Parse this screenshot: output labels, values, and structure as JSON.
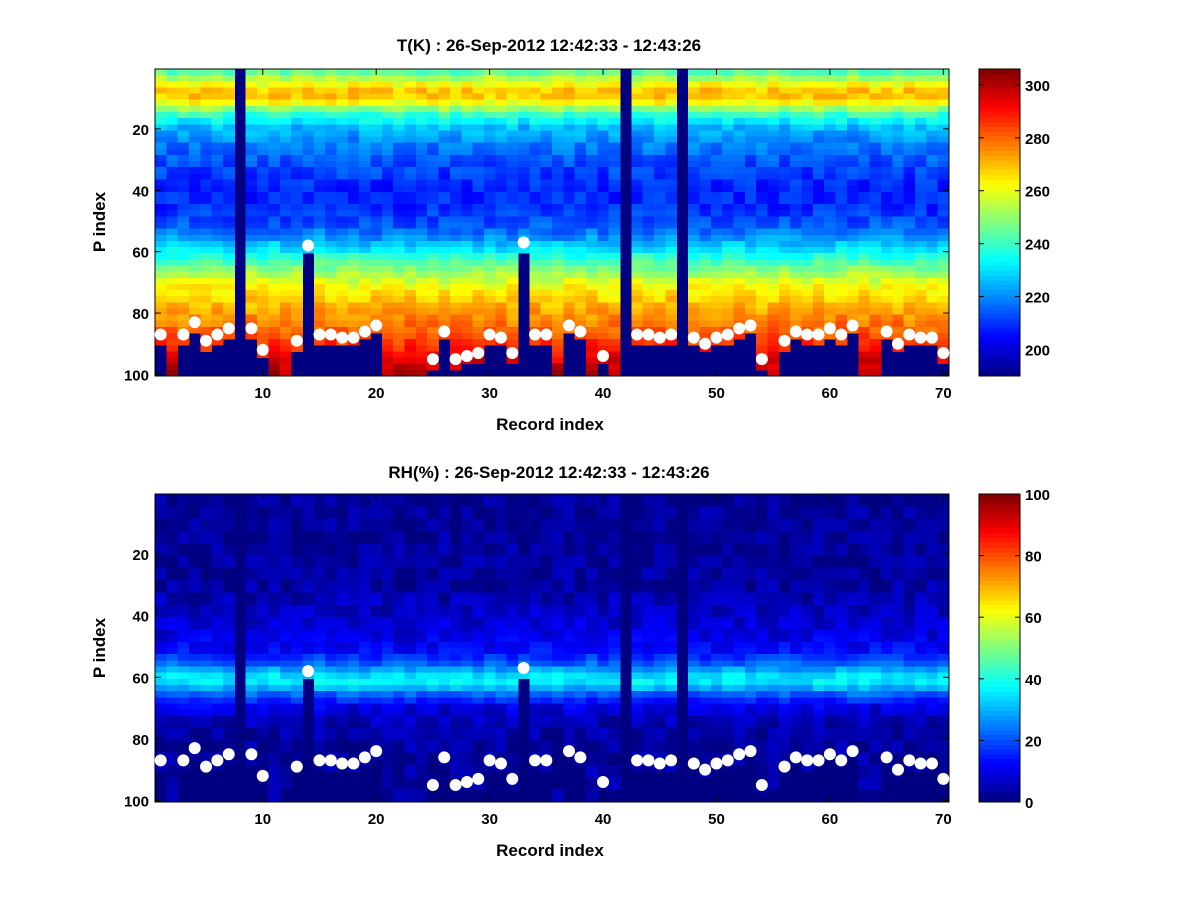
{
  "chart_data": [
    {
      "type": "heatmap",
      "title": "T(K) : 26-Sep-2012 12:42:33 - 12:43:26",
      "xlabel": "Record index",
      "ylabel": "P index",
      "xlim": [
        1,
        70
      ],
      "ylim": [
        100,
        1
      ],
      "y_reversed": true,
      "xticks": [
        10,
        20,
        30,
        40,
        50,
        60,
        70
      ],
      "yticks": [
        20,
        40,
        60,
        80,
        100
      ],
      "colorbar": {
        "min": 190,
        "max": 306,
        "ticks": [
          200,
          220,
          240,
          260,
          280,
          300
        ],
        "colormap": "jet"
      },
      "profile": {
        "p": [
          1,
          5,
          9,
          12,
          16,
          20,
          26,
          32,
          40,
          46,
          52,
          56,
          60,
          64,
          68,
          72,
          76,
          80,
          84,
          88,
          92,
          96,
          100
        ],
        "v": [
          240,
          258,
          272,
          262,
          240,
          226,
          218,
          213,
          208,
          209,
          214,
          222,
          232,
          243,
          253,
          262,
          268,
          273,
          278,
          283,
          288,
          295,
          300
        ]
      },
      "missing_records": [
        8,
        42,
        47
      ],
      "markers": {
        "x": [
          1,
          3,
          4,
          5,
          6,
          7,
          9,
          10,
          13,
          14,
          15,
          16,
          17,
          18,
          19,
          20,
          25,
          26,
          27,
          28,
          29,
          30,
          31,
          32,
          33,
          34,
          35,
          37,
          38,
          40,
          43,
          44,
          45,
          46,
          48,
          49,
          50,
          51,
          52,
          53,
          54,
          56,
          57,
          58,
          59,
          60,
          61,
          62,
          65,
          66,
          67,
          68,
          69,
          70
        ],
        "y": [
          87,
          87,
          83,
          89,
          87,
          85,
          85,
          92,
          89,
          58,
          87,
          87,
          88,
          88,
          86,
          84,
          95,
          86,
          95,
          94,
          93,
          87,
          88,
          93,
          57,
          87,
          87,
          84,
          86,
          94,
          87,
          87,
          88,
          87,
          88,
          90,
          88,
          87,
          85,
          84,
          95,
          89,
          86,
          87,
          87,
          85,
          87,
          84,
          86,
          90,
          87,
          88,
          88,
          93
        ]
      }
    },
    {
      "type": "heatmap",
      "title": "RH(%) : 26-Sep-2012 12:42:33 - 12:43:26",
      "xlabel": "Record index",
      "ylabel": "P index",
      "xlim": [
        1,
        70
      ],
      "ylim": [
        100,
        1
      ],
      "y_reversed": true,
      "xticks": [
        10,
        20,
        30,
        40,
        50,
        60,
        70
      ],
      "yticks": [
        20,
        40,
        60,
        80,
        100
      ],
      "colorbar": {
        "min": 0,
        "max": 100,
        "ticks": [
          0,
          20,
          40,
          60,
          80,
          100
        ],
        "colormap": "jet"
      },
      "profile": {
        "p": [
          1,
          30,
          38,
          46,
          52,
          56,
          59,
          61,
          63,
          66,
          70,
          75,
          80,
          100
        ],
        "v": [
          2,
          3,
          6,
          9,
          13,
          22,
          32,
          38,
          34,
          22,
          10,
          5,
          3,
          3
        ]
      },
      "missing_records": [
        8,
        42,
        47
      ],
      "markers": {
        "x": [
          1,
          3,
          4,
          5,
          6,
          7,
          9,
          10,
          13,
          14,
          15,
          16,
          17,
          18,
          19,
          20,
          25,
          26,
          27,
          28,
          29,
          30,
          31,
          32,
          33,
          34,
          35,
          37,
          38,
          40,
          43,
          44,
          45,
          46,
          48,
          49,
          50,
          51,
          52,
          53,
          54,
          56,
          57,
          58,
          59,
          60,
          61,
          62,
          65,
          66,
          67,
          68,
          69,
          70
        ],
        "y": [
          87,
          87,
          83,
          89,
          87,
          85,
          85,
          92,
          89,
          58,
          87,
          87,
          88,
          88,
          86,
          84,
          95,
          86,
          95,
          94,
          93,
          87,
          88,
          93,
          57,
          87,
          87,
          84,
          86,
          94,
          87,
          87,
          88,
          87,
          88,
          90,
          88,
          87,
          85,
          84,
          95,
          89,
          86,
          87,
          87,
          85,
          87,
          84,
          86,
          90,
          87,
          88,
          88,
          93
        ]
      }
    }
  ]
}
